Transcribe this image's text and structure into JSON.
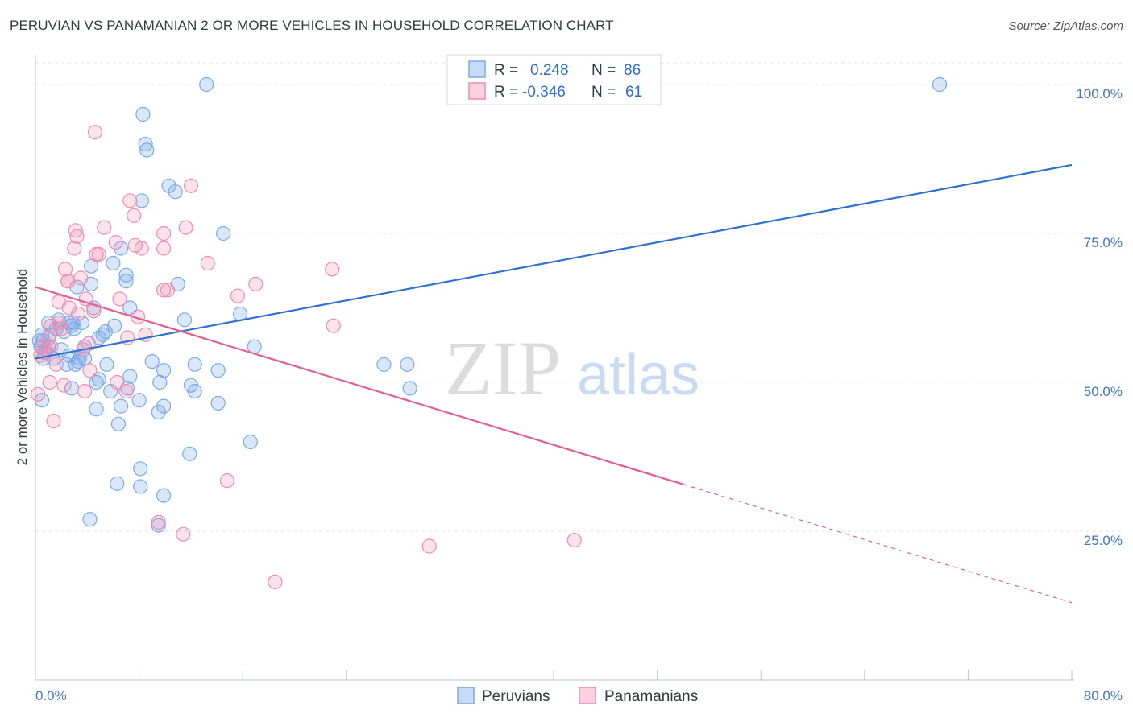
{
  "header": {
    "title": "PERUVIAN VS PANAMANIAN 2 OR MORE VEHICLES IN HOUSEHOLD CORRELATION CHART",
    "source": "Source: ZipAtlas.com"
  },
  "watermark": {
    "zip": "ZIP",
    "atlas": "atlas"
  },
  "legend_top": {
    "rows": [
      {
        "r_label": "R =",
        "r_value": "0.248",
        "n_label": "N =",
        "n_value": "86",
        "color": "#7aaae8"
      },
      {
        "r_label": "R =",
        "r_value": "-0.346",
        "n_label": "N =",
        "n_value": "61",
        "color": "#f08cb0"
      }
    ]
  },
  "legend_bottom": {
    "items": [
      {
        "label": "Peruvians",
        "color": "#7aaae8"
      },
      {
        "label": "Panamanians",
        "color": "#f08cb0"
      }
    ]
  },
  "chart_data": {
    "type": "scatter",
    "title": "PERUVIAN VS PANAMANIAN 2 OR MORE VEHICLES IN HOUSEHOLD CORRELATION CHART",
    "xlabel": "",
    "ylabel": "2 or more Vehicles in Household",
    "xlim": [
      0,
      80
    ],
    "ylim": [
      0,
      105
    ],
    "x_tick_labels": [
      "0.0%",
      "80.0%"
    ],
    "y_ticks": [
      25,
      50,
      75,
      100
    ],
    "y_tick_labels": [
      "25.0%",
      "50.0%",
      "75.0%",
      "100.0%"
    ],
    "grid": true,
    "legend_position": "top-center",
    "colors": {
      "peruvians": "#7aaae8",
      "panamanians": "#f08cb0",
      "peruvians_line": "#2f6fd0",
      "panamanians_line": "#e0608f"
    },
    "series": [
      {
        "name": "Peruvians",
        "points": [
          [
            13.2,
            100
          ],
          [
            69.8,
            100
          ],
          [
            8.3,
            95
          ],
          [
            8.5,
            90
          ],
          [
            8.6,
            89
          ],
          [
            10.3,
            83
          ],
          [
            10.8,
            82
          ],
          [
            8.2,
            80.5
          ],
          [
            14.5,
            75
          ],
          [
            6.6,
            72.5
          ],
          [
            6.0,
            70
          ],
          [
            4.3,
            69.5
          ],
          [
            7.0,
            68
          ],
          [
            7.0,
            67
          ],
          [
            4.3,
            66.5
          ],
          [
            3.2,
            66
          ],
          [
            11.0,
            66.5
          ],
          [
            7.3,
            62.5
          ],
          [
            4.5,
            62.5
          ],
          [
            15.8,
            61.5
          ],
          [
            11.5,
            60.5
          ],
          [
            3.6,
            60
          ],
          [
            2.9,
            60
          ],
          [
            2.6,
            60
          ],
          [
            1.0,
            60
          ],
          [
            2.8,
            59.5
          ],
          [
            6.1,
            59.5
          ],
          [
            3.0,
            59
          ],
          [
            1.6,
            59
          ],
          [
            1.1,
            58
          ],
          [
            0.5,
            58
          ],
          [
            5.4,
            58.5
          ],
          [
            5.2,
            58
          ],
          [
            4.9,
            57.5
          ],
          [
            0.6,
            57
          ],
          [
            0.4,
            56
          ],
          [
            1.0,
            56
          ],
          [
            3.8,
            56
          ],
          [
            16.9,
            56
          ],
          [
            0.7,
            55
          ],
          [
            2.0,
            55.5
          ],
          [
            2.6,
            54.5
          ],
          [
            3.4,
            54
          ],
          [
            1.4,
            54
          ],
          [
            3.8,
            54
          ],
          [
            0.6,
            54
          ],
          [
            9.0,
            53.5
          ],
          [
            3.1,
            53
          ],
          [
            5.5,
            53
          ],
          [
            12.3,
            53
          ],
          [
            26.9,
            53
          ],
          [
            28.7,
            53
          ],
          [
            2.4,
            53
          ],
          [
            9.9,
            52
          ],
          [
            14.1,
            52
          ],
          [
            7.3,
            51
          ],
          [
            4.9,
            50.5
          ],
          [
            9.6,
            50
          ],
          [
            4.7,
            50
          ],
          [
            12.0,
            49.5
          ],
          [
            2.8,
            49
          ],
          [
            7.1,
            49
          ],
          [
            12.3,
            48.5
          ],
          [
            5.8,
            48.5
          ],
          [
            28.9,
            49
          ],
          [
            0.5,
            47
          ],
          [
            8.0,
            47
          ],
          [
            14.1,
            46.5
          ],
          [
            6.6,
            46
          ],
          [
            9.9,
            46
          ],
          [
            4.7,
            45.5
          ],
          [
            9.5,
            45
          ],
          [
            6.4,
            43
          ],
          [
            16.6,
            40
          ],
          [
            11.9,
            38
          ],
          [
            8.1,
            35.5
          ],
          [
            6.3,
            33
          ],
          [
            8.1,
            32.5
          ],
          [
            9.9,
            31
          ],
          [
            4.2,
            27
          ],
          [
            9.5,
            26
          ],
          [
            0.3,
            57
          ],
          [
            1.8,
            60.5
          ],
          [
            0.8,
            55.5
          ],
          [
            3.3,
            53.5
          ],
          [
            2.2,
            58.5
          ]
        ]
      },
      {
        "name": "Panamanians",
        "points": [
          [
            4.6,
            92
          ],
          [
            7.3,
            80.5
          ],
          [
            7.6,
            78
          ],
          [
            12.0,
            83
          ],
          [
            5.3,
            76
          ],
          [
            3.1,
            75.5
          ],
          [
            3.2,
            74.5
          ],
          [
            9.9,
            75
          ],
          [
            11.6,
            76
          ],
          [
            6.2,
            73.5
          ],
          [
            3.0,
            72.5
          ],
          [
            7.7,
            73
          ],
          [
            8.2,
            72.5
          ],
          [
            9.9,
            72.5
          ],
          [
            4.7,
            71.5
          ],
          [
            4.9,
            71.5
          ],
          [
            13.3,
            70
          ],
          [
            22.9,
            69
          ],
          [
            2.3,
            69
          ],
          [
            2.5,
            67
          ],
          [
            2.5,
            67
          ],
          [
            3.5,
            67.5
          ],
          [
            17.0,
            66.5
          ],
          [
            9.9,
            65.5
          ],
          [
            10.2,
            65.5
          ],
          [
            15.6,
            64.5
          ],
          [
            1.8,
            63.5
          ],
          [
            6.5,
            64
          ],
          [
            3.9,
            64
          ],
          [
            4.5,
            62
          ],
          [
            7.9,
            61
          ],
          [
            2.6,
            62.5
          ],
          [
            3.3,
            61.5
          ],
          [
            1.8,
            60
          ],
          [
            1.2,
            59.5
          ],
          [
            23.0,
            59.5
          ],
          [
            8.5,
            58
          ],
          [
            7.1,
            57.5
          ],
          [
            1.0,
            57.5
          ],
          [
            4.1,
            56.5
          ],
          [
            1.2,
            56
          ],
          [
            0.8,
            55
          ],
          [
            3.7,
            55.5
          ],
          [
            0.4,
            54.5
          ],
          [
            1.6,
            53
          ],
          [
            4.2,
            52
          ],
          [
            1.1,
            50
          ],
          [
            6.3,
            50
          ],
          [
            2.2,
            49.5
          ],
          [
            7.0,
            48.5
          ],
          [
            0.2,
            48
          ],
          [
            1.4,
            43.5
          ],
          [
            14.8,
            33.5
          ],
          [
            9.5,
            26.5
          ],
          [
            11.4,
            24.5
          ],
          [
            30.4,
            22.5
          ],
          [
            41.6,
            23.5
          ],
          [
            18.5,
            16.5
          ],
          [
            0.5,
            56
          ],
          [
            2.0,
            59
          ],
          [
            3.8,
            48.5
          ]
        ]
      }
    ],
    "trend_lines": [
      {
        "series": "Peruvians",
        "x0": 0,
        "y0": 54.0,
        "x1": 80,
        "y1": 86.5,
        "dashed_from": null
      },
      {
        "series": "Panamanians",
        "x0": 0,
        "y0": 66.0,
        "x1": 80,
        "y1": 13.0,
        "dashed_from": 50
      }
    ]
  }
}
